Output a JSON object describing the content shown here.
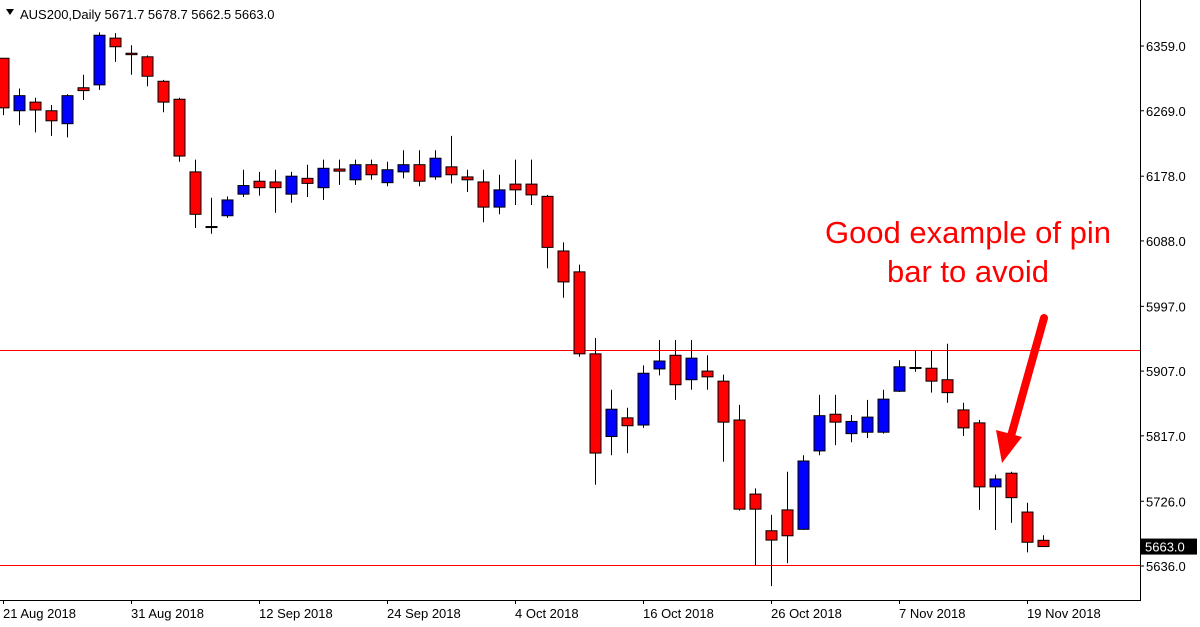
{
  "chart_data": {
    "type": "candlestick",
    "title": "AUS200,Daily  5671.7 5678.7 5662.5 5663.0",
    "annotation": [
      "Good example of pin",
      "bar to avoid"
    ],
    "categories": [
      "21 Aug 2018",
      null,
      null,
      null,
      null,
      null,
      null,
      null,
      "31 Aug 2018",
      null,
      null,
      null,
      null,
      null,
      null,
      null,
      "12 Sep 2018",
      null,
      null,
      null,
      null,
      null,
      null,
      null,
      "24 Sep 2018",
      null,
      null,
      null,
      null,
      null,
      null,
      null,
      "4 Oct 2018",
      null,
      null,
      null,
      null,
      null,
      null,
      null,
      "16 Oct 2018",
      null,
      null,
      null,
      null,
      null,
      null,
      null,
      "26 Oct 2018",
      null,
      null,
      null,
      null,
      null,
      null,
      null,
      "7 Nov 2018",
      null,
      null,
      null,
      null,
      null,
      null,
      null,
      "19 Nov 2018",
      null
    ],
    "open": [
      6342,
      6269,
      6281,
      6269,
      6251,
      6301,
      6305,
      6370,
      6349,
      6344,
      6310,
      6285,
      6184,
      6108,
      6123,
      6153,
      6171,
      6170,
      6153,
      6175,
      6162,
      6188,
      6173,
      6194,
      6169,
      6184,
      6194,
      6177,
      6191,
      6177,
      6170,
      6135,
      6167,
      6167,
      6150,
      6074,
      6045,
      5931,
      5816,
      5842,
      5832,
      5910,
      5929,
      5895,
      5907,
      5893,
      5839,
      5736,
      5685,
      5714,
      5687,
      5796,
      5847,
      5820,
      5822,
      5822,
      5879,
      5912,
      5911,
      5895,
      5853,
      5835,
      5746,
      5765,
      5711,
      5671.7
    ],
    "high": [
      6342,
      6300,
      6287,
      6277,
      6292,
      6319,
      6378,
      6377,
      6360,
      6346,
      6312,
      6287,
      6201,
      6148,
      6150,
      6187,
      6184,
      6187,
      6184,
      6194,
      6201,
      6201,
      6201,
      6201,
      6198,
      6214,
      6214,
      6214,
      6234,
      6187,
      6187,
      6180,
      6201,
      6201,
      6152,
      6086,
      6055,
      5953,
      5881,
      5856,
      5915,
      5950,
      5950,
      5950,
      5929,
      5902,
      5860,
      5744,
      5707,
      5767,
      5790,
      5874,
      5874,
      5846,
      5867,
      5881,
      5922,
      5936,
      5935,
      5945,
      5863,
      5839,
      5763,
      5767,
      5724,
      5678.7
    ],
    "low": [
      6263,
      6249,
      6239,
      6234,
      6232,
      6284,
      6298,
      6337,
      6319,
      6303,
      6267,
      6198,
      6106,
      6098,
      6120,
      6149,
      6151,
      6127,
      6141,
      6149,
      6145,
      6166,
      6166,
      6173,
      6164,
      6175,
      6164,
      6173,
      6168,
      6156,
      6114,
      6125,
      6138,
      6138,
      6050,
      6009,
      5927,
      5749,
      5790,
      5793,
      5828,
      5901,
      5867,
      5881,
      5881,
      5781,
      5713,
      5637,
      5608,
      5640,
      5686,
      5790,
      5804,
      5808,
      5814,
      5820,
      5878,
      5906,
      5877,
      5863,
      5817,
      5714,
      5686,
      5696,
      5655,
      5662.5
    ],
    "close": [
      6273,
      6290,
      6270,
      6255,
      6290,
      6297,
      6374,
      6358,
      6347,
      6317,
      6281,
      6206,
      6125,
      6107,
      6145,
      6165,
      6162,
      6162,
      6178,
      6168,
      6189,
      6185,
      6194,
      6180,
      6187,
      6194,
      6171,
      6203,
      6180,
      6173,
      6135,
      6159,
      6159,
      6152,
      6079,
      6031,
      5931,
      5793,
      5854,
      5831,
      5904,
      5921,
      5888,
      5925,
      5899,
      5836,
      5715,
      5715,
      5672,
      5678,
      5782,
      5845,
      5836,
      5837,
      5843,
      5868,
      5913,
      5911,
      5893,
      5877,
      5828,
      5746,
      5757,
      5731,
      5669,
      5663.0
    ],
    "up_color": "#0000ff",
    "down_color": "#ff0000",
    "hlines": [
      5936,
      5637
    ],
    "hline_color": "#ff0000",
    "last_price": {
      "value": 5663,
      "label": "5663.0"
    },
    "ylim": [
      5588.7,
      6423.0
    ],
    "yticks": [
      {
        "value": 6359,
        "label": "6359.0"
      },
      {
        "value": 6269,
        "label": "6269.0"
      },
      {
        "value": 6178,
        "label": "6178.0"
      },
      {
        "value": 6088,
        "label": "6088.0"
      },
      {
        "value": 5997,
        "label": "5997.0"
      },
      {
        "value": 5907,
        "label": "5907.0"
      },
      {
        "value": 5817,
        "label": "5817.0"
      },
      {
        "value": 5726,
        "label": "5726.0"
      },
      {
        "value": 5636,
        "label": "5636.0"
      }
    ]
  }
}
